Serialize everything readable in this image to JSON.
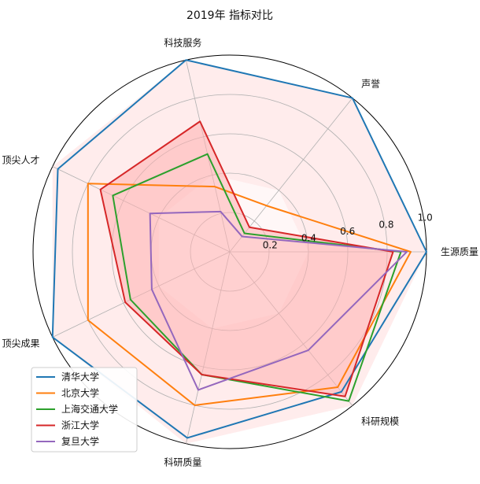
{
  "chart_data": {
    "type": "radar",
    "title": "2019年 指标对比",
    "axes": [
      "生源质量",
      "声誉",
      "科技服务",
      "顶尖人才",
      "顶尖成果",
      "科研质量",
      "科研规模"
    ],
    "radial_ticks": [
      "0.2",
      "0.4",
      "0.6",
      "0.8",
      "1.0"
    ],
    "rlim": [
      0,
      1
    ],
    "grid": true,
    "legend_position": "lower-left",
    "fill_band": {
      "from": 0.4,
      "to": 1.0,
      "color": "#ffeaea"
    },
    "series": [
      {
        "name": "清华大学",
        "color": "#1f77b4",
        "values": [
          1.0,
          1.0,
          1.0,
          0.97,
          1.0,
          0.97,
          0.91
        ]
      },
      {
        "name": "北京大学",
        "color": "#ff7f0e",
        "values": [
          0.92,
          0.3,
          0.34,
          0.8,
          0.8,
          0.8,
          0.88
        ]
      },
      {
        "name": "上海交通大学",
        "color": "#2ca02c",
        "values": [
          0.87,
          0.12,
          0.51,
          0.66,
          0.56,
          0.64,
          0.97
        ]
      },
      {
        "name": "浙江大学",
        "color": "#d62728",
        "values": [
          0.83,
          0.16,
          0.68,
          0.73,
          0.59,
          0.64,
          0.94
        ]
      },
      {
        "name": "复旦大学",
        "color": "#9467bd",
        "values": [
          0.9,
          0.1,
          0.21,
          0.45,
          0.44,
          0.72,
          0.64
        ]
      }
    ]
  }
}
